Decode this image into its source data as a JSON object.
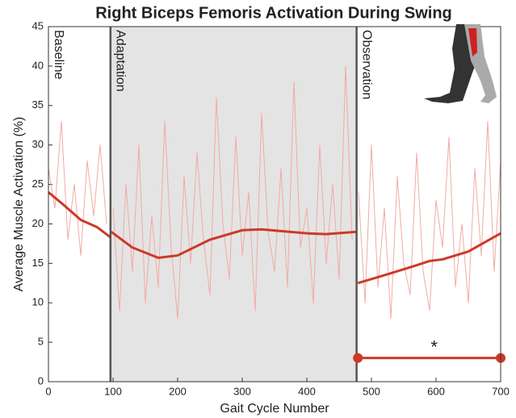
{
  "chart_data": {
    "type": "line",
    "title": "Right Biceps Femoris Activation During Swing",
    "x_label": "Gait Cycle Number",
    "y_label": "Average Muscle Activation (%)",
    "xlim": [
      0,
      700
    ],
    "xticks": [
      0,
      100,
      200,
      300,
      400,
      500,
      600,
      700
    ],
    "ylim": [
      0,
      45
    ],
    "yticks": [
      0,
      5,
      10,
      15,
      20,
      25,
      30,
      35,
      40,
      45
    ],
    "phases": [
      "Baseline",
      "Adaptation",
      "Observation"
    ],
    "phase_boundaries": [
      96,
      477
    ],
    "shade_color": "#e4e4e4",
    "series": [
      {
        "color": "#f2aaa2",
        "width": 1,
        "x": [
          0,
          10,
          20,
          30,
          40,
          50,
          60,
          70,
          80,
          90
        ],
        "values": [
          27,
          22,
          33,
          18,
          25,
          16,
          28,
          21,
          30,
          20
        ]
      },
      {
        "color": "#f2aaa2",
        "width": 1,
        "x": [
          100,
          110,
          120,
          130,
          140,
          150,
          160,
          170,
          180,
          190,
          200,
          210,
          220,
          230,
          240,
          250,
          260,
          270,
          280,
          290,
          300,
          310,
          320,
          330,
          340,
          350,
          360,
          370,
          380,
          390,
          400,
          410,
          420,
          430,
          440,
          450,
          460,
          470
        ],
        "values": [
          22,
          9,
          25,
          14,
          30,
          10,
          21,
          12,
          33,
          17,
          8,
          26,
          15,
          29,
          18,
          11,
          36,
          20,
          13,
          31,
          16,
          24,
          9,
          34,
          19,
          14,
          27,
          12,
          38,
          17,
          22,
          10,
          30,
          15,
          25,
          13,
          40,
          18
        ]
      },
      {
        "color": "#f2aaa2",
        "width": 1,
        "x": [
          480,
          490,
          500,
          510,
          520,
          530,
          540,
          550,
          560,
          570,
          580,
          590,
          600,
          610,
          620,
          630,
          640,
          650,
          660,
          670,
          680,
          690,
          700
        ],
        "values": [
          24,
          10,
          30,
          12,
          22,
          8,
          26,
          15,
          11,
          29,
          14,
          9,
          23,
          17,
          31,
          12,
          20,
          10,
          27,
          16,
          33,
          14,
          28
        ]
      },
      {
        "color": "#cc3a28",
        "width": 3,
        "x": [
          0,
          25,
          50,
          75,
          96
        ],
        "values": [
          24,
          22.3,
          20.5,
          19.6,
          18.3
        ]
      },
      {
        "color": "#cc3a28",
        "width": 3,
        "x": [
          97,
          130,
          170,
          200,
          250,
          300,
          330,
          400,
          430,
          477
        ],
        "values": [
          19,
          17,
          15.7,
          16,
          18,
          19.2,
          19.3,
          18.8,
          18.7,
          19
        ]
      },
      {
        "color": "#cc3a28",
        "width": 3,
        "x": [
          479,
          520,
          560,
          590,
          610,
          650,
          700
        ],
        "values": [
          12.5,
          13.5,
          14.5,
          15.3,
          15.5,
          16.5,
          18.8
        ]
      }
    ],
    "significance": {
      "x": [
        479,
        700
      ],
      "y": 3,
      "label": "*",
      "color": "#cc3a28"
    }
  }
}
